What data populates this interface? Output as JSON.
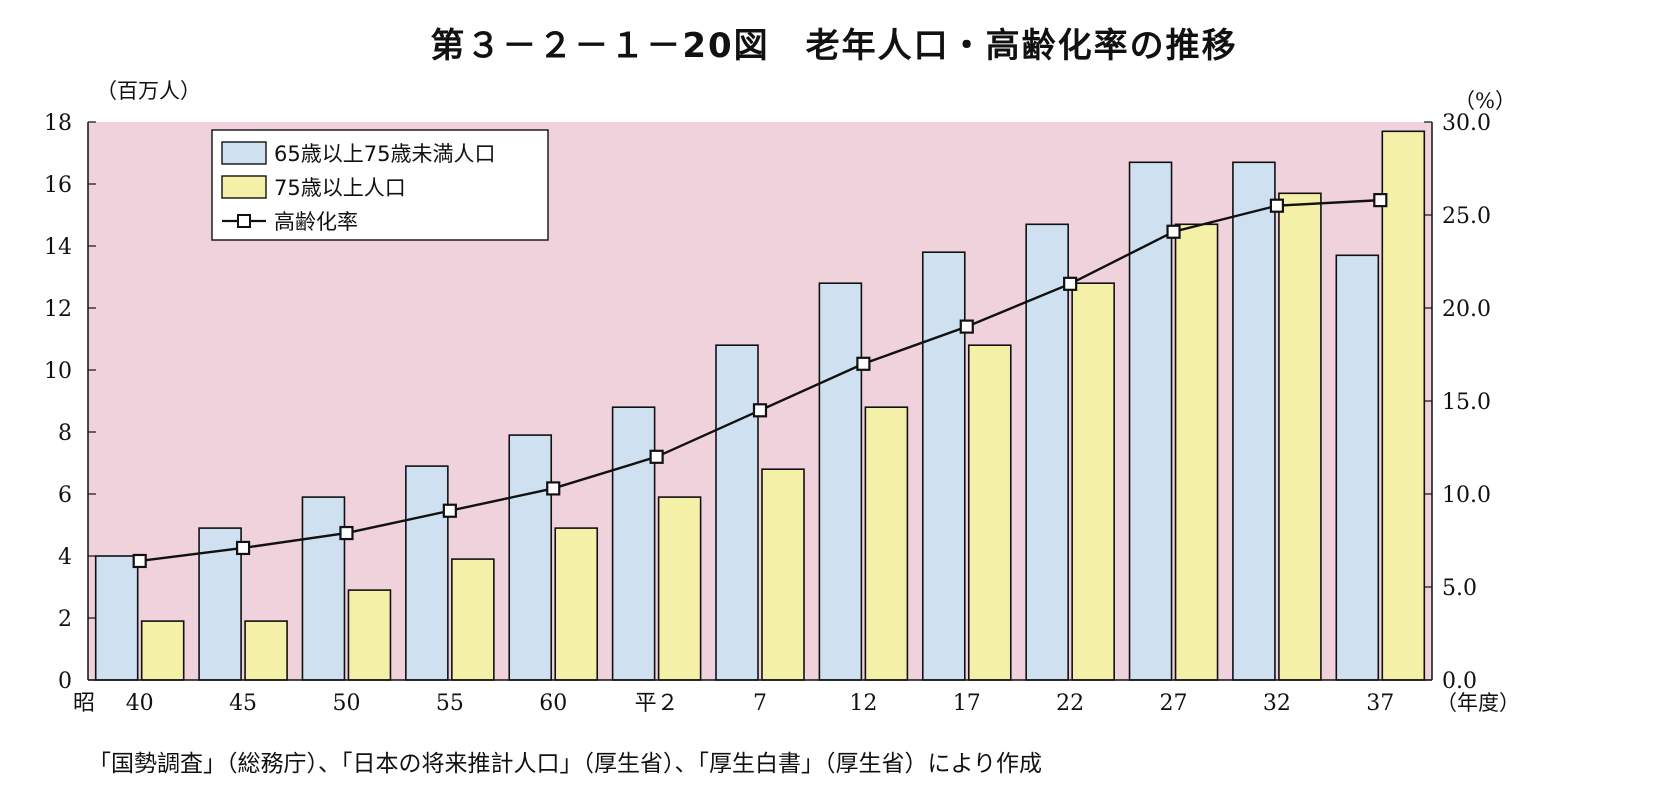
{
  "title": "第３－２－１－20図　老年人口・高齢化率の推移",
  "source_note": "「国勢調査」（総務庁）、「日本の将来推計人口」（厚生省）、「厚生白書」（厚生省）により作成",
  "colors": {
    "plot_background": "#f0d2dd",
    "bar_65_74": "#cfe0f0",
    "bar_75_plus": "#f5f0a8",
    "line": "#111111"
  },
  "chart_data": {
    "type": "bar",
    "title": "老年人口・高齢化率の推移",
    "y_left_unit": "（百万人）",
    "y_right_unit": "（%）",
    "x_unit": "（年度）",
    "era_markers": [
      "昭",
      "平"
    ],
    "categories": [
      "40",
      "45",
      "50",
      "55",
      "60",
      "平２",
      "7",
      "12",
      "17",
      "22",
      "27",
      "32",
      "37"
    ],
    "y_left_ticks": [
      "0",
      "2",
      "4",
      "6",
      "8",
      "10",
      "12",
      "14",
      "16",
      "18"
    ],
    "y_right_ticks": [
      "0.0",
      "5.0",
      "10.0",
      "15.0",
      "20.0",
      "25.0",
      "30.0"
    ],
    "ylim_left": [
      0,
      18
    ],
    "ylim_right": [
      0,
      30
    ],
    "grid": false,
    "legend_position": "top-left",
    "series": [
      {
        "name": "65歳以上75歳未満人口",
        "type": "bar",
        "axis": "left",
        "values": [
          4.0,
          4.9,
          5.9,
          6.9,
          7.9,
          8.8,
          10.8,
          12.8,
          13.8,
          14.7,
          16.7,
          16.7,
          13.7
        ]
      },
      {
        "name": "75歳以上人口",
        "type": "bar",
        "axis": "left",
        "values": [
          1.9,
          1.9,
          2.9,
          3.9,
          4.9,
          5.9,
          6.8,
          8.8,
          10.8,
          12.8,
          14.7,
          15.7,
          17.7
        ]
      },
      {
        "name": "高齢化率",
        "type": "line",
        "axis": "right",
        "values": [
          6.4,
          7.1,
          7.9,
          9.1,
          10.3,
          12.0,
          14.5,
          17.0,
          19.0,
          21.3,
          24.1,
          25.5,
          25.8
        ]
      }
    ]
  }
}
